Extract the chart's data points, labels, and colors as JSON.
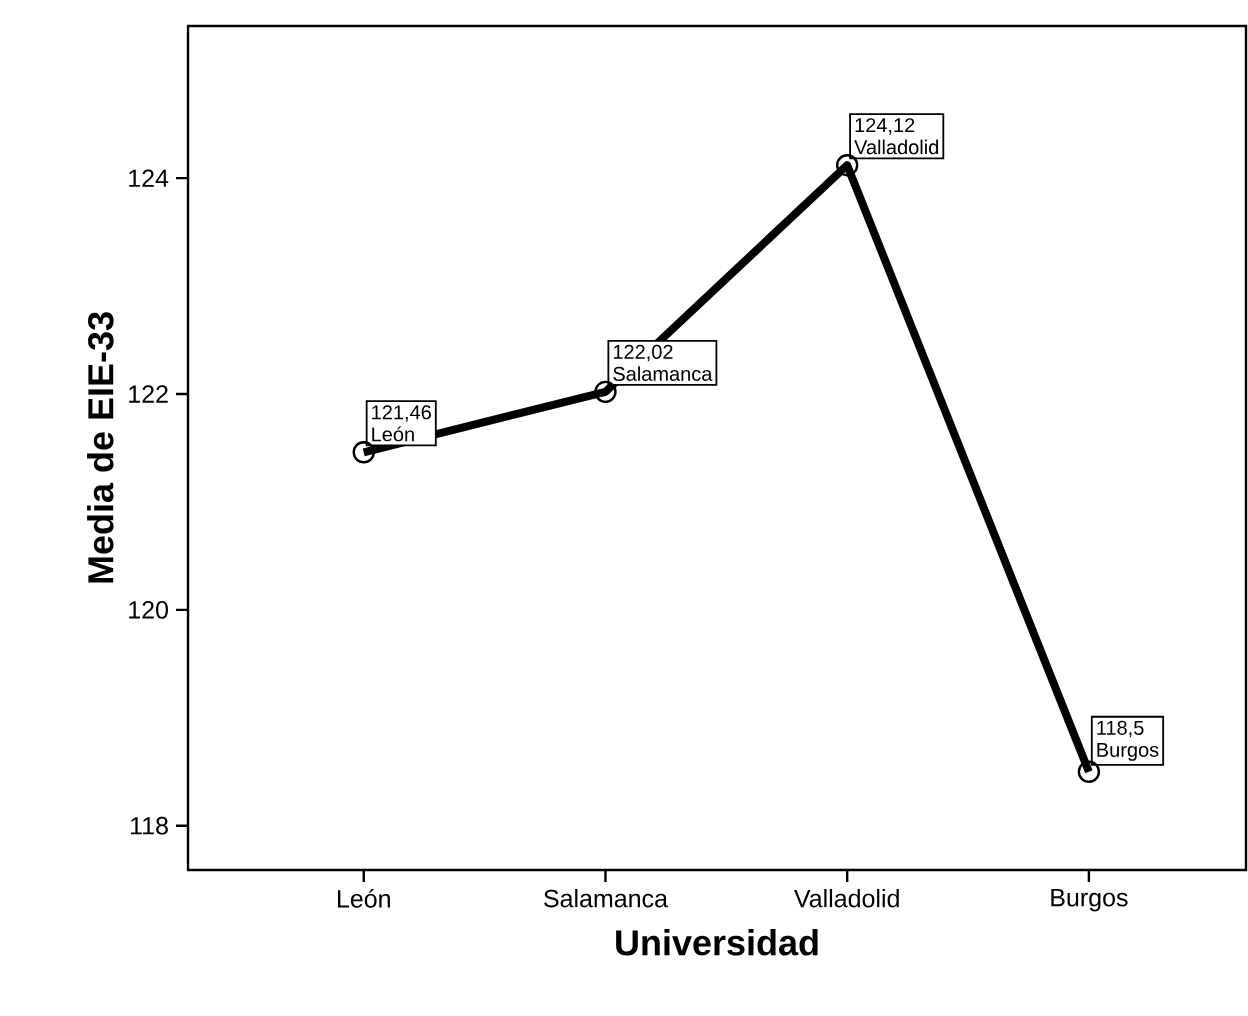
{
  "chart_data": {
    "type": "line",
    "xlabel": "Universidad",
    "ylabel": "Media de EIE-33",
    "categories": [
      "León",
      "Salamanca",
      "Valladolid",
      "Burgos"
    ],
    "values": [
      121.46,
      122.02,
      124.12,
      118.5
    ],
    "value_labels": [
      "121,46",
      "122,02",
      "124,12",
      "118,5"
    ],
    "annotations": [
      {
        "text": "León",
        "x": "León",
        "y": 121.46
      },
      {
        "text": "Salamanca",
        "x": "Salamanca",
        "y": 122.02
      },
      {
        "text": "Valladolid",
        "x": "Valladolid",
        "y": 124.12
      },
      {
        "text": "Burgos",
        "x": "Burgos",
        "y": 118.5
      }
    ],
    "color": "#000000",
    "marker": "circle",
    "line_style": "solid",
    "ylim": [
      117.59,
      125.41
    ],
    "yticks": [
      118,
      120,
      122,
      124
    ],
    "grid": false
  }
}
